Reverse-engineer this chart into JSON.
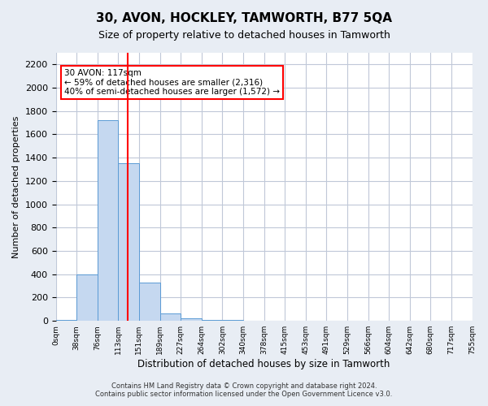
{
  "title": "30, AVON, HOCKLEY, TAMWORTH, B77 5QA",
  "subtitle": "Size of property relative to detached houses in Tamworth",
  "xlabel": "Distribution of detached houses by size in Tamworth",
  "ylabel": "Number of detached properties",
  "bar_color": "#c5d8f0",
  "bar_edge_color": "#5b9bd5",
  "bar_values": [
    10,
    400,
    1720,
    1350,
    330,
    65,
    25,
    10,
    5,
    2,
    1,
    0,
    0,
    0,
    0,
    0,
    0,
    0,
    0,
    0
  ],
  "bin_labels": [
    "0sqm",
    "38sqm",
    "76sqm",
    "113sqm",
    "151sqm",
    "189sqm",
    "227sqm",
    "264sqm",
    "302sqm",
    "340sqm",
    "378sqm",
    "415sqm",
    "453sqm",
    "491sqm",
    "529sqm",
    "566sqm",
    "604sqm",
    "642sqm",
    "680sqm",
    "717sqm",
    "755sqm"
  ],
  "ylim": [
    0,
    2300
  ],
  "yticks": [
    0,
    200,
    400,
    600,
    800,
    1000,
    1200,
    1400,
    1600,
    1800,
    2000,
    2200
  ],
  "red_line_x": 2.97,
  "annotation_text": "30 AVON: 117sqm\n← 59% of detached houses are smaller (2,316)\n40% of semi-detached houses are larger (1,572) →",
  "annotation_box_color": "white",
  "annotation_box_edge": "red",
  "footer_line1": "Contains HM Land Registry data © Crown copyright and database right 2024.",
  "footer_line2": "Contains public sector information licensed under the Open Government Licence v3.0.",
  "background_color": "#e8edf4",
  "plot_bg_color": "white",
  "grid_color": "#c0c8d8"
}
